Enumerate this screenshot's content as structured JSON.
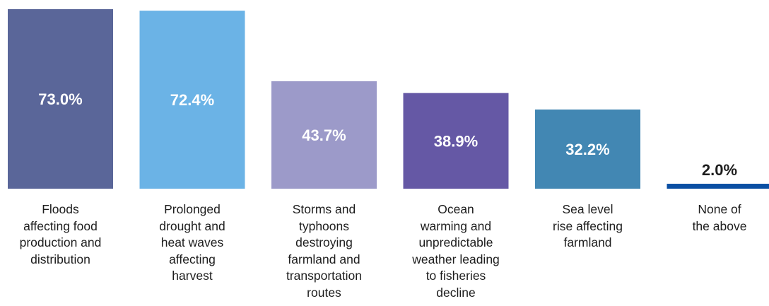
{
  "chart_data": {
    "type": "bar",
    "title": "",
    "xlabel": "",
    "ylabel": "",
    "ylim": [
      0,
      73
    ],
    "grid": false,
    "legend": "none",
    "categories": [
      "Floods\naffecting food\nproduction and\ndistribution",
      "Prolonged\ndrought and\nheat waves\naffecting\nharvest",
      "Storms and\ntyphoons\ndestroying\nfarmland and\ntransportation\nroutes",
      "Ocean\nwarming and\nunpredictable\nweather leading\nto fisheries\ndecline",
      "Sea level\nrise affecting\nfarmland",
      "None of\nthe above"
    ],
    "values": [
      73.0,
      72.4,
      43.7,
      38.9,
      32.2,
      2.0
    ],
    "value_labels": [
      "73.0%",
      "72.4%",
      "43.7%",
      "38.9%",
      "32.2%",
      "2.0%"
    ],
    "colors": [
      "#5a6699",
      "#6bb3e6",
      "#9c9ac9",
      "#6558a5",
      "#4287b3",
      "#0a4fa3"
    ],
    "label_colors": [
      "#ffffff",
      "#ffffff",
      "#ffffff",
      "#ffffff",
      "#ffffff",
      "#1d1d1d"
    ]
  }
}
